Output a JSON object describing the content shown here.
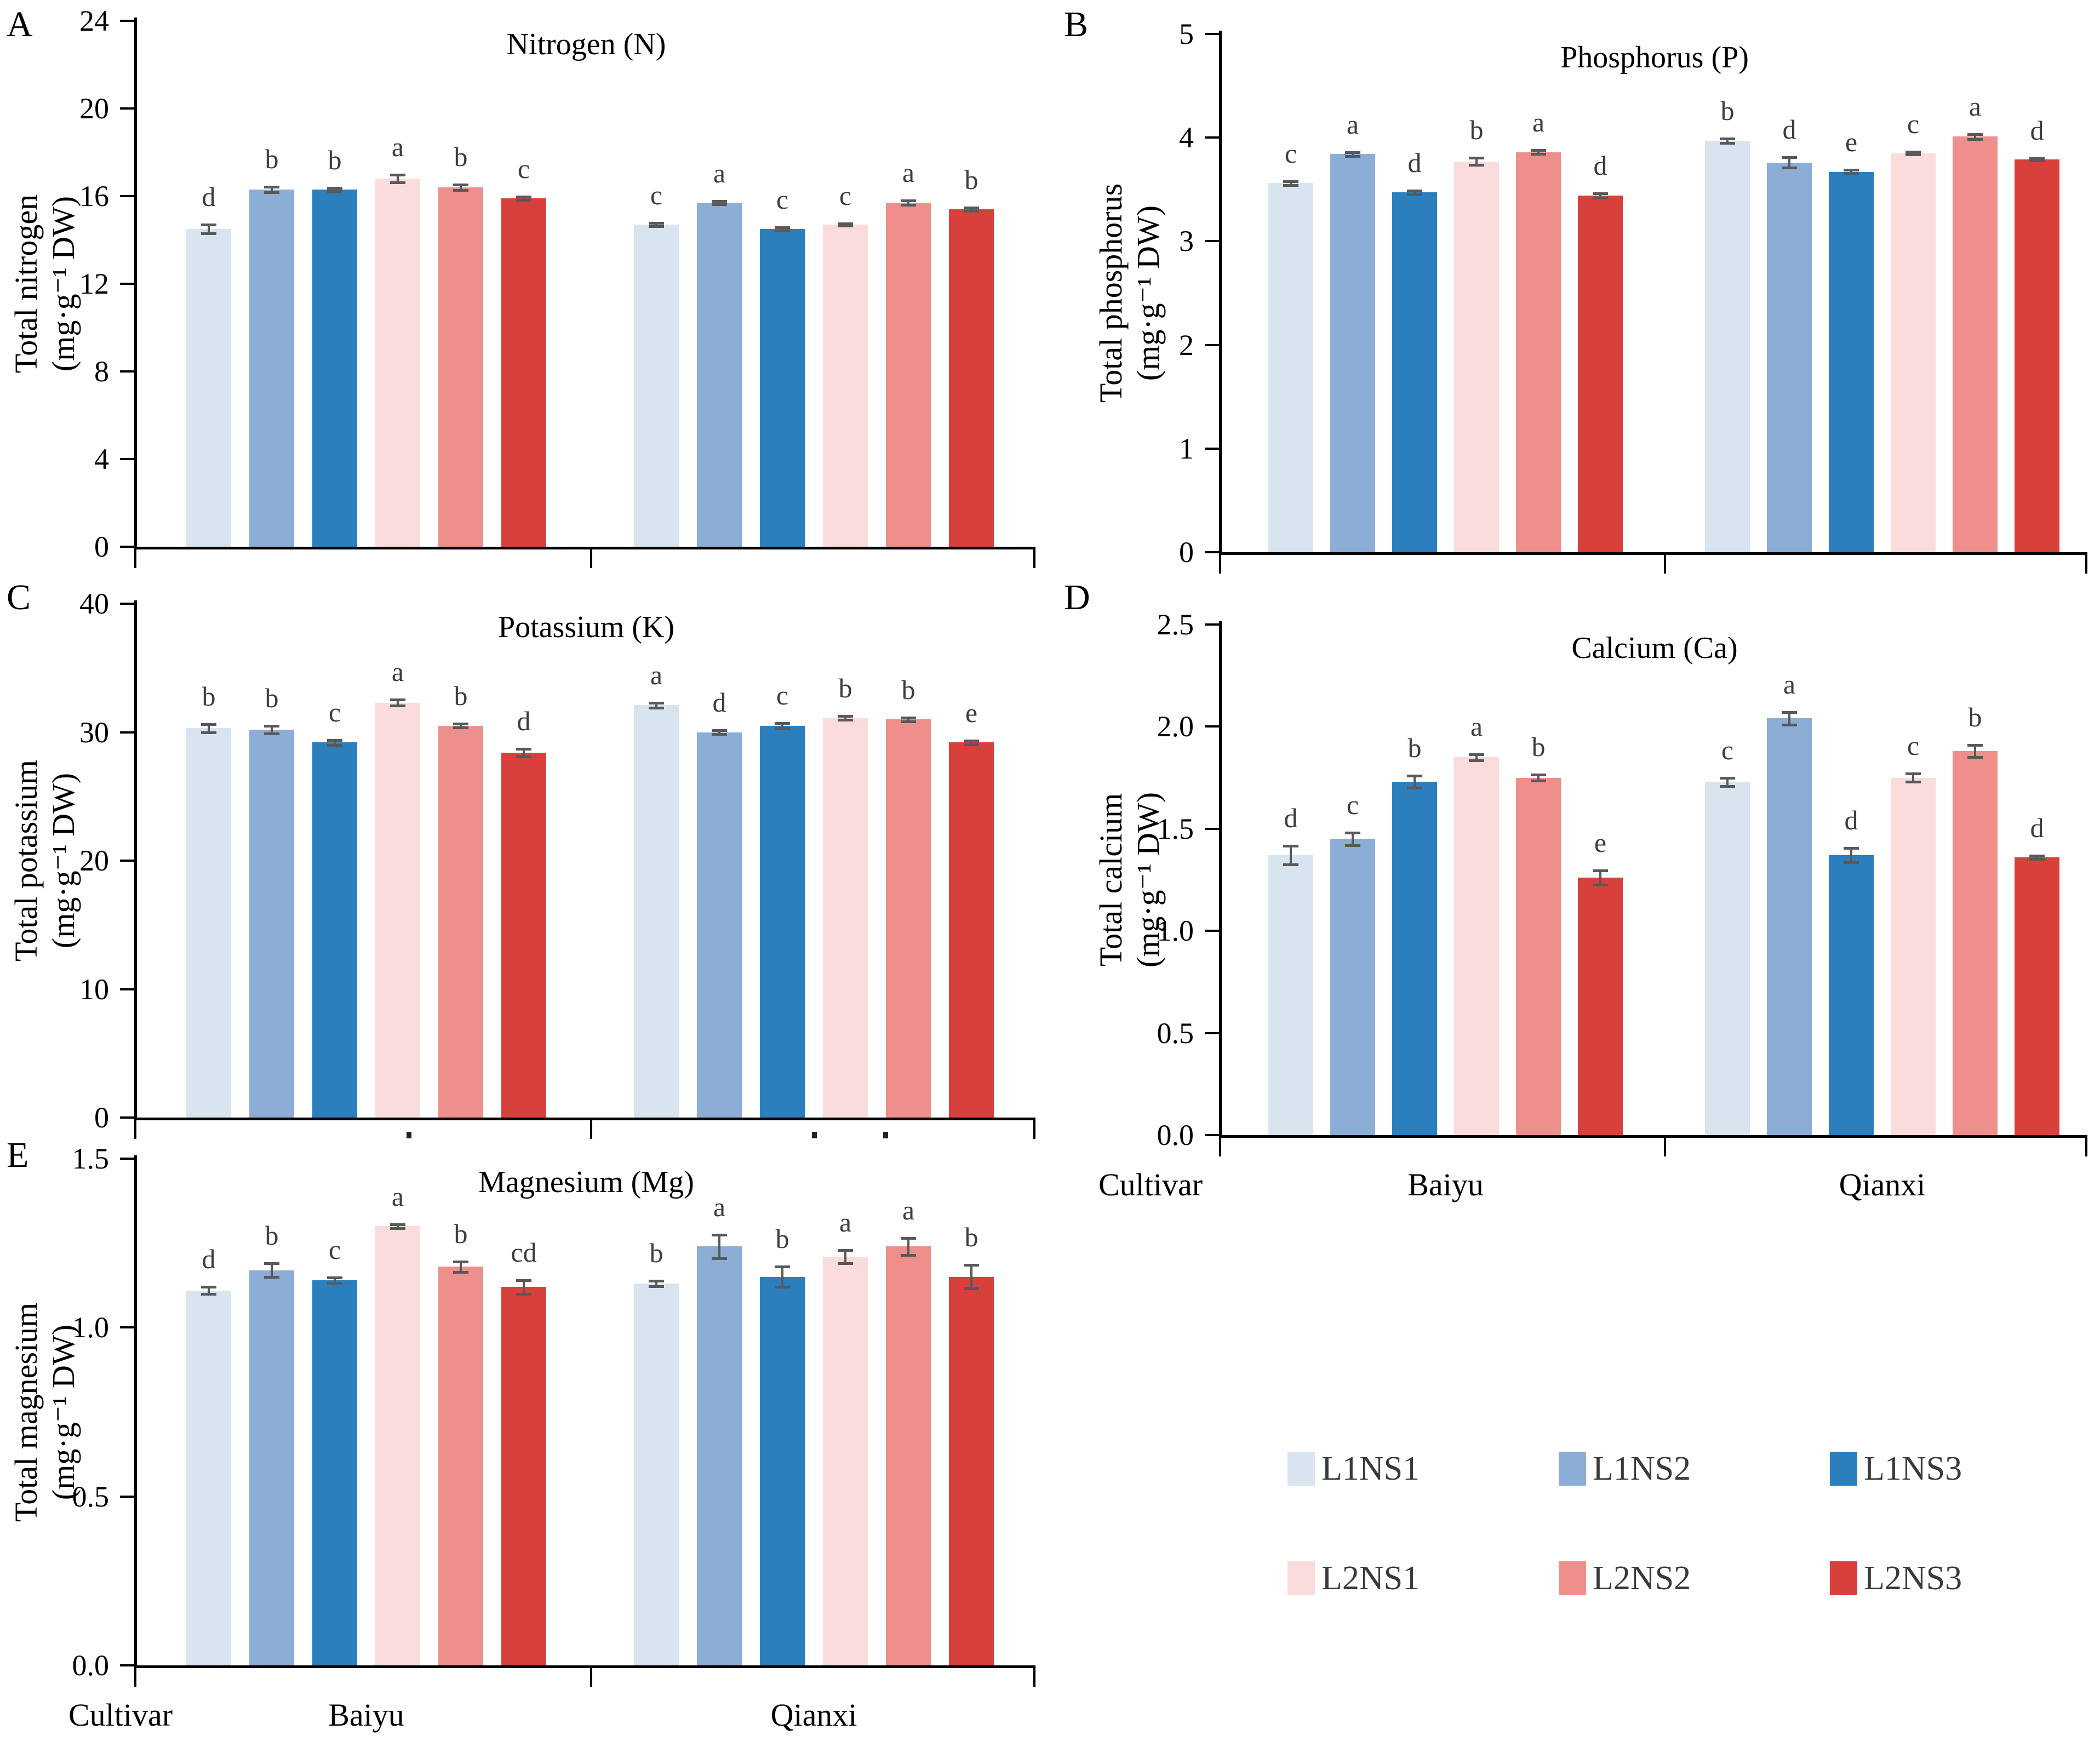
{
  "xaxis": {
    "cultivar_label": "Cultivar",
    "group_labels": [
      "Baiyu",
      "Qianxi"
    ]
  },
  "legend": {
    "items": [
      {
        "label": "L1NS1",
        "color": "#d9e4f1"
      },
      {
        "label": "L1NS2",
        "color": "#8badd6"
      },
      {
        "label": "L1NS3",
        "color": "#2a7fbc"
      },
      {
        "label": "L2NS1",
        "color": "#f9dcdb"
      },
      {
        "label": "L2NS2",
        "color": "#ee8f8b"
      },
      {
        "label": "L2NS3",
        "color": "#d8403c"
      }
    ]
  },
  "colors": {
    "error_bar": "#595959",
    "sig_letter": "#3d3d3d",
    "axis": "#000000"
  },
  "chart_data": [
    {
      "panel": "A",
      "panel_label": "A",
      "type": "bar",
      "title": "Nitrogen (N)",
      "ylabel_line1": "Total nitrogen",
      "ylabel_line2": "(mg·g⁻¹ DW)",
      "ylim": [
        0,
        24
      ],
      "yticks": [
        0,
        4,
        8,
        12,
        16,
        20,
        24
      ],
      "ytick_decimals": 0,
      "categories": [
        "Baiyu",
        "Qianxi"
      ],
      "show_x_labels": false,
      "series": [
        {
          "name": "L1NS1",
          "values": [
            14.5,
            14.7
          ],
          "errors": [
            0.2,
            0.08
          ],
          "letters": [
            "d",
            "c"
          ]
        },
        {
          "name": "L1NS2",
          "values": [
            16.3,
            15.7
          ],
          "errors": [
            0.12,
            0.08
          ],
          "letters": [
            "b",
            "a"
          ]
        },
        {
          "name": "L1NS3",
          "values": [
            16.3,
            14.5
          ],
          "errors": [
            0.08,
            0.07
          ],
          "letters": [
            "b",
            "c"
          ]
        },
        {
          "name": "L2NS1",
          "values": [
            16.8,
            14.7
          ],
          "errors": [
            0.18,
            0.06
          ],
          "letters": [
            "a",
            "c"
          ]
        },
        {
          "name": "L2NS2",
          "values": [
            16.4,
            15.7
          ],
          "errors": [
            0.12,
            0.1
          ],
          "letters": [
            "b",
            "a"
          ]
        },
        {
          "name": "L2NS3",
          "values": [
            15.9,
            15.4
          ],
          "errors": [
            0.07,
            0.07
          ],
          "letters": [
            "c",
            "b"
          ]
        }
      ]
    },
    {
      "panel": "B",
      "panel_label": "B",
      "type": "bar",
      "title": "Phosphorus (P)",
      "ylabel_line1": "Total phosphorus",
      "ylabel_line2": "(mg·g⁻¹ DW)",
      "ylim": [
        0,
        5
      ],
      "yticks": [
        0,
        1,
        2,
        3,
        4,
        5
      ],
      "ytick_decimals": 0,
      "categories": [
        "Baiyu",
        "Qianxi"
      ],
      "show_x_labels": false,
      "series": [
        {
          "name": "L1NS1",
          "values": [
            3.56,
            3.97
          ],
          "errors": [
            0.02,
            0.02
          ],
          "letters": [
            "c",
            "b"
          ]
        },
        {
          "name": "L1NS2",
          "values": [
            3.84,
            3.76
          ],
          "errors": [
            0.02,
            0.05
          ],
          "letters": [
            "a",
            "d"
          ]
        },
        {
          "name": "L1NS3",
          "values": [
            3.47,
            3.67
          ],
          "errors": [
            0.02,
            0.02
          ],
          "letters": [
            "d",
            "e"
          ]
        },
        {
          "name": "L2NS1",
          "values": [
            3.77,
            3.85
          ],
          "errors": [
            0.035,
            0.015
          ],
          "letters": [
            "b",
            "c"
          ]
        },
        {
          "name": "L2NS2",
          "values": [
            3.86,
            4.01
          ],
          "errors": [
            0.02,
            0.025
          ],
          "letters": [
            "a",
            "a"
          ]
        },
        {
          "name": "L2NS3",
          "values": [
            3.44,
            3.79
          ],
          "errors": [
            0.02,
            0.012
          ],
          "letters": [
            "d",
            "d"
          ]
        }
      ]
    },
    {
      "panel": "C",
      "panel_label": "C",
      "type": "bar",
      "title": "Potassium (K)",
      "ylabel_line1": "Total potassium",
      "ylabel_line2": "(mg·g⁻¹ DW)",
      "ylim": [
        0,
        40
      ],
      "yticks": [
        0,
        10,
        20,
        30,
        40
      ],
      "ytick_decimals": 0,
      "categories": [
        "Baiyu",
        "Qianxi"
      ],
      "show_x_labels": false,
      "series": [
        {
          "name": "L1NS1",
          "values": [
            30.3,
            32.1
          ],
          "errors": [
            0.3,
            0.2
          ],
          "letters": [
            "b",
            "a"
          ]
        },
        {
          "name": "L1NS2",
          "values": [
            30.2,
            30.0
          ],
          "errors": [
            0.3,
            0.15
          ],
          "letters": [
            "b",
            "d"
          ]
        },
        {
          "name": "L1NS3",
          "values": [
            29.2,
            30.5
          ],
          "errors": [
            0.2,
            0.2
          ],
          "letters": [
            "c",
            "c"
          ]
        },
        {
          "name": "L2NS1",
          "values": [
            32.3,
            31.1
          ],
          "errors": [
            0.25,
            0.15
          ],
          "letters": [
            "a",
            "b"
          ]
        },
        {
          "name": "L2NS2",
          "values": [
            30.5,
            31.0
          ],
          "errors": [
            0.15,
            0.15
          ],
          "letters": [
            "b",
            "b"
          ]
        },
        {
          "name": "L2NS3",
          "values": [
            28.4,
            29.2
          ],
          "errors": [
            0.3,
            0.15
          ],
          "letters": [
            "d",
            "e"
          ]
        }
      ]
    },
    {
      "panel": "D",
      "panel_label": "D",
      "type": "bar",
      "title": "Calcium (Ca)",
      "ylabel_line1": "Total calcium",
      "ylabel_line2": "(mg·g⁻¹ DW)",
      "ylim": [
        0,
        2.5
      ],
      "yticks": [
        0,
        0.5,
        1.0,
        1.5,
        2.0,
        2.5
      ],
      "ytick_decimals": 1,
      "categories": [
        "Baiyu",
        "Qianxi"
      ],
      "show_x_labels": true,
      "series": [
        {
          "name": "L1NS1",
          "values": [
            1.37,
            1.73
          ],
          "errors": [
            0.045,
            0.02
          ],
          "letters": [
            "d",
            "c"
          ]
        },
        {
          "name": "L1NS2",
          "values": [
            1.45,
            2.04
          ],
          "errors": [
            0.03,
            0.03
          ],
          "letters": [
            "c",
            "a"
          ]
        },
        {
          "name": "L1NS3",
          "values": [
            1.73,
            1.37
          ],
          "errors": [
            0.03,
            0.035
          ],
          "letters": [
            "b",
            "d"
          ]
        },
        {
          "name": "L2NS1",
          "values": [
            1.85,
            1.75
          ],
          "errors": [
            0.015,
            0.02
          ],
          "letters": [
            "a",
            "c"
          ]
        },
        {
          "name": "L2NS2",
          "values": [
            1.75,
            1.88
          ],
          "errors": [
            0.015,
            0.03
          ],
          "letters": [
            "b",
            "b"
          ]
        },
        {
          "name": "L2NS3",
          "values": [
            1.26,
            1.36
          ],
          "errors": [
            0.035,
            0.008
          ],
          "letters": [
            "e",
            "d"
          ]
        }
      ]
    },
    {
      "panel": "E",
      "panel_label": "E",
      "type": "bar",
      "title": "Magnesium (Mg)",
      "ylabel_line1": "Total magnesium",
      "ylabel_line2": "(mg·g⁻¹ DW)",
      "ylim": [
        0,
        1.5
      ],
      "yticks": [
        0,
        0.5,
        1.0,
        1.5
      ],
      "ytick_decimals": 1,
      "categories": [
        "Baiyu",
        "Qianxi"
      ],
      "show_x_labels": true,
      "series": [
        {
          "name": "L1NS1",
          "values": [
            1.11,
            1.13
          ],
          "errors": [
            0.01,
            0.008
          ],
          "letters": [
            "d",
            "b"
          ]
        },
        {
          "name": "L1NS2",
          "values": [
            1.17,
            1.24
          ],
          "errors": [
            0.02,
            0.035
          ],
          "letters": [
            "b",
            "a"
          ]
        },
        {
          "name": "L1NS3",
          "values": [
            1.14,
            1.15
          ],
          "errors": [
            0.008,
            0.03
          ],
          "letters": [
            "c",
            "b"
          ]
        },
        {
          "name": "L2NS1",
          "values": [
            1.3,
            1.21
          ],
          "errors": [
            0.006,
            0.02
          ],
          "letters": [
            "a",
            "a"
          ]
        },
        {
          "name": "L2NS2",
          "values": [
            1.18,
            1.24
          ],
          "errors": [
            0.015,
            0.025
          ],
          "letters": [
            "b",
            "a"
          ]
        },
        {
          "name": "L2NS3",
          "values": [
            1.12,
            1.15
          ],
          "errors": [
            0.02,
            0.035
          ],
          "letters": [
            "cd",
            "b"
          ]
        }
      ]
    }
  ]
}
